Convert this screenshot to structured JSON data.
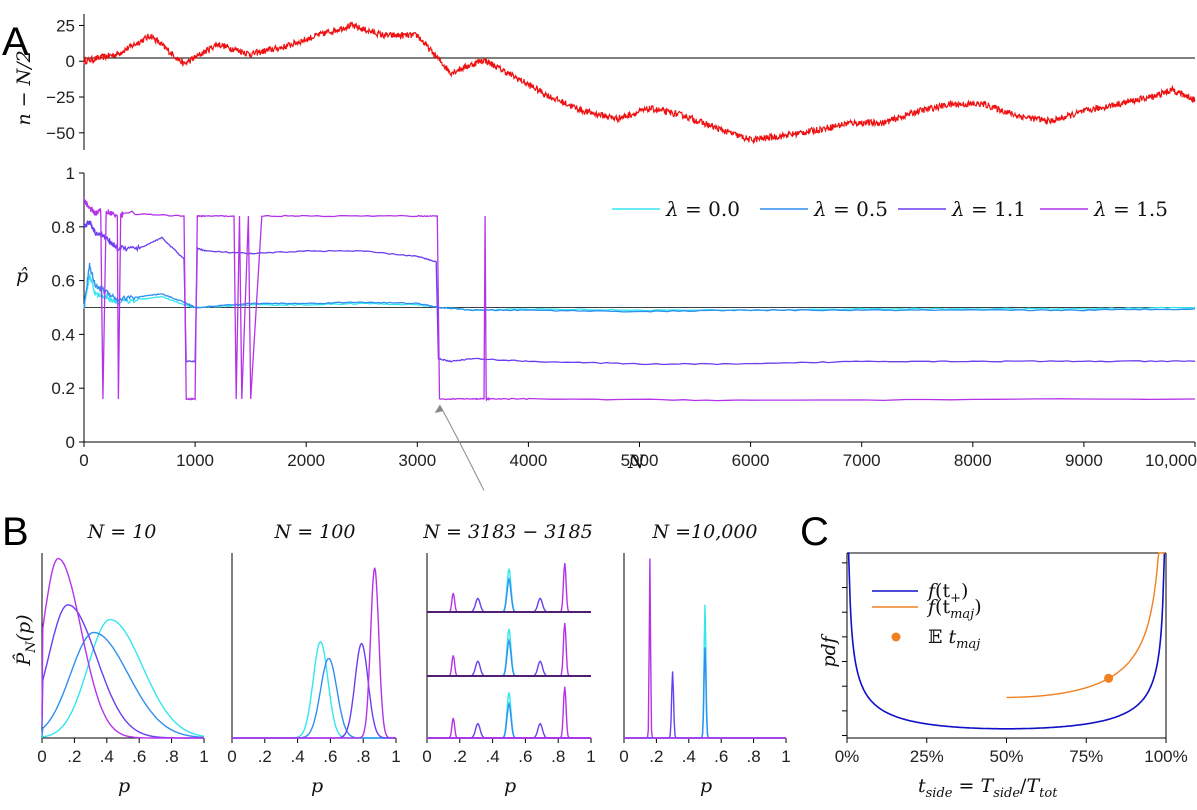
{
  "panel_labels": {
    "a": "A",
    "b": "B",
    "c": "C"
  },
  "colors": {
    "walk": "#ee1111",
    "lambda": [
      "#33e6f0",
      "#2f8ff0",
      "#6a3ff0",
      "#b433e8"
    ],
    "f_plus": "#1010c8",
    "f_maj": "#f08020",
    "zero_line": "#000000",
    "annotation": "#888888"
  },
  "chart_data": [
    {
      "id": "A-top",
      "type": "line",
      "title": "",
      "ylabel": "n − N/2",
      "xlabel": "",
      "xlim": [
        0,
        10000
      ],
      "ylim": [
        -62,
        33
      ],
      "yticks": [
        "25",
        "0",
        "−25",
        "−50"
      ],
      "ytick_values": [
        25,
        0,
        -25,
        -50
      ],
      "series": [
        {
          "name": "random walk",
          "x": [
            0,
            300,
            600,
            900,
            1200,
            1500,
            1800,
            2100,
            2400,
            2700,
            3000,
            3300,
            3600,
            3900,
            4200,
            4500,
            4800,
            5100,
            5400,
            5700,
            6000,
            6300,
            6600,
            6900,
            7200,
            7500,
            7800,
            8100,
            8400,
            8700,
            9000,
            9300,
            9600,
            9800,
            10000
          ],
          "y": [
            0,
            5,
            18,
            -2,
            12,
            5,
            10,
            18,
            25,
            18,
            18,
            -8,
            1,
            -12,
            -25,
            -35,
            -40,
            -33,
            -38,
            -47,
            -55,
            -52,
            -48,
            -43,
            -43,
            -35,
            -30,
            -30,
            -38,
            -42,
            -35,
            -30,
            -25,
            -20,
            -27
          ]
        }
      ]
    },
    {
      "id": "A-bottom",
      "type": "line",
      "title": "",
      "ylabel": "p̂",
      "xlabel": "N",
      "xlim": [
        0,
        10000
      ],
      "ylim": [
        0,
        1
      ],
      "xticks": [
        "0",
        "1000",
        "2000",
        "3000",
        "4000",
        "5000",
        "6000",
        "7000",
        "8000",
        "9000",
        "10,000"
      ],
      "xtick_values": [
        0,
        1000,
        2000,
        3000,
        4000,
        5000,
        6000,
        7000,
        8000,
        9000,
        10000
      ],
      "yticks": [
        "0",
        "0.2",
        "0.4",
        "0.6",
        "0.8",
        "1"
      ],
      "ytick_values": [
        0,
        0.2,
        0.4,
        0.6,
        0.8,
        1
      ],
      "legend_position": "top-right",
      "annotation": {
        "text": "",
        "from_x": 3600,
        "from_y": -0.18,
        "to_x": 3183,
        "to_y": 0.16
      },
      "series": [
        {
          "name": "λ = 0.0",
          "x": [
            0,
            50,
            100,
            200,
            300,
            500,
            700,
            900,
            1000,
            1500,
            2000,
            2500,
            3000,
            3200,
            3500,
            4000,
            5000,
            6000,
            7000,
            8000,
            9000,
            10000
          ],
          "y": [
            0.5,
            0.62,
            0.55,
            0.54,
            0.52,
            0.53,
            0.54,
            0.51,
            0.5,
            0.51,
            0.51,
            0.515,
            0.51,
            0.5,
            0.49,
            0.495,
            0.49,
            0.49,
            0.495,
            0.495,
            0.495,
            0.5
          ]
        },
        {
          "name": "λ = 0.5",
          "x": [
            0,
            50,
            100,
            200,
            300,
            500,
            700,
            900,
            1000,
            1500,
            2000,
            2500,
            3000,
            3200,
            3500,
            4000,
            5000,
            6000,
            7000,
            8000,
            9000,
            10000
          ],
          "y": [
            0.5,
            0.66,
            0.58,
            0.56,
            0.53,
            0.54,
            0.55,
            0.52,
            0.5,
            0.515,
            0.515,
            0.52,
            0.515,
            0.5,
            0.49,
            0.49,
            0.485,
            0.49,
            0.49,
            0.49,
            0.49,
            0.495
          ]
        },
        {
          "name": "λ = 1.1",
          "x": [
            0,
            50,
            100,
            200,
            300,
            500,
            700,
            900,
            920,
            1000,
            1020,
            1100,
            1500,
            2000,
            2500,
            3000,
            3170,
            3190,
            3300,
            3500,
            4000,
            5000,
            6000,
            7000,
            8000,
            9000,
            10000
          ],
          "y": [
            0.8,
            0.82,
            0.78,
            0.76,
            0.72,
            0.72,
            0.76,
            0.68,
            0.3,
            0.3,
            0.72,
            0.71,
            0.7,
            0.71,
            0.71,
            0.69,
            0.67,
            0.31,
            0.3,
            0.31,
            0.3,
            0.29,
            0.29,
            0.3,
            0.3,
            0.3,
            0.3
          ]
        },
        {
          "name": "λ = 1.5",
          "x": [
            0,
            50,
            100,
            150,
            170,
            200,
            300,
            310,
            330,
            350,
            900,
            920,
            1000,
            1020,
            1100,
            1350,
            1370,
            1400,
            1420,
            1480,
            1500,
            1600,
            2000,
            3000,
            3180,
            3200,
            3500,
            3600,
            3610,
            3620,
            3650,
            4000,
            6000,
            10000
          ],
          "y": [
            0.9,
            0.87,
            0.85,
            0.86,
            0.16,
            0.86,
            0.84,
            0.16,
            0.84,
            0.85,
            0.84,
            0.16,
            0.16,
            0.84,
            0.84,
            0.84,
            0.16,
            0.84,
            0.16,
            0.84,
            0.16,
            0.84,
            0.84,
            0.84,
            0.84,
            0.16,
            0.16,
            0.16,
            0.84,
            0.16,
            0.16,
            0.16,
            0.155,
            0.16
          ]
        }
      ]
    },
    {
      "id": "B1",
      "type": "line",
      "title": "N = 10",
      "ylabel": "P̂_N(p)",
      "xlabel": "p",
      "xlim": [
        0,
        1
      ],
      "xticks": [
        "0",
        ".2",
        ".4",
        ".6",
        ".8",
        "1"
      ],
      "xtick_values": [
        0,
        0.2,
        0.4,
        0.6,
        0.8,
        1
      ],
      "series": [
        {
          "name": "λ = 0.0",
          "mode": 0.42,
          "width": 0.17,
          "height": 0.64
        },
        {
          "name": "λ = 0.5",
          "mode": 0.32,
          "width": 0.18,
          "height": 0.57
        },
        {
          "name": "λ = 1.1",
          "mode": 0.16,
          "width": 0.15,
          "height": 0.72
        },
        {
          "name": "λ = 1.5",
          "mode": 0.1,
          "width": 0.12,
          "height": 0.97
        }
      ]
    },
    {
      "id": "B2",
      "type": "line",
      "title": "N = 100",
      "xlabel": "p",
      "xlim": [
        0,
        1
      ],
      "xticks": [
        "0",
        ".2",
        ".4",
        ".6",
        ".8",
        "1"
      ],
      "xtick_values": [
        0,
        0.2,
        0.4,
        0.6,
        0.8,
        1
      ],
      "series": [
        {
          "name": "λ = 0.0",
          "mode": 0.54,
          "width": 0.045,
          "height": 0.52
        },
        {
          "name": "λ = 0.5",
          "mode": 0.59,
          "width": 0.05,
          "height": 0.43
        },
        {
          "name": "λ = 1.1",
          "mode": 0.79,
          "width": 0.04,
          "height": 0.51
        },
        {
          "name": "λ = 1.5",
          "mode": 0.87,
          "width": 0.025,
          "height": 0.92
        }
      ]
    },
    {
      "id": "B3",
      "type": "line",
      "title": "N = 3183 − 3185",
      "xlabel": "p",
      "xlim": [
        0,
        1
      ],
      "xticks": [
        "0",
        ".2",
        ".4",
        ".6",
        ".8",
        "1"
      ],
      "xtick_values": [
        0,
        0.2,
        0.4,
        0.6,
        0.8,
        1
      ],
      "series": [
        {
          "name": "λ = 0.0",
          "mode": 0.5,
          "width": 0.012,
          "height": 0.8
        },
        {
          "name": "λ = 0.5",
          "mode": 0.5,
          "width": 0.012,
          "height": 0.6
        },
        {
          "name": "λ = 1.1",
          "mode": 0.31,
          "width": 0.014,
          "height": 0.25
        },
        {
          "name": "λ = 1.1",
          "mode": 0.69,
          "width": 0.014,
          "height": 0.25
        },
        {
          "name": "λ = 1.5",
          "mode": 0.16,
          "width": 0.008,
          "height": 0.35
        },
        {
          "name": "λ = 1.5",
          "mode": 0.84,
          "width": 0.008,
          "height": 0.9
        }
      ]
    },
    {
      "id": "B4",
      "type": "line",
      "title": "N =10,000",
      "xlabel": "p",
      "xlim": [
        0,
        1
      ],
      "xticks": [
        "0",
        ".2",
        ".4",
        ".6",
        ".8",
        "1"
      ],
      "xtick_values": [
        0,
        0.2,
        0.4,
        0.6,
        0.8,
        1
      ],
      "series": [
        {
          "name": "λ = 0.0",
          "mode": 0.5,
          "width": 0.006,
          "height": 0.72
        },
        {
          "name": "λ = 0.5",
          "mode": 0.5,
          "width": 0.006,
          "height": 0.49
        },
        {
          "name": "λ = 1.1",
          "mode": 0.3,
          "width": 0.006,
          "height": 0.36
        },
        {
          "name": "λ = 1.5",
          "mode": 0.16,
          "width": 0.004,
          "height": 0.97
        }
      ]
    },
    {
      "id": "C",
      "type": "line",
      "title": "",
      "ylabel": "pdf",
      "xlabel": "t_side = T_side/T_tot",
      "xlim": [
        0,
        1
      ],
      "xticks": [
        "0%",
        "25%",
        "50%",
        "75%",
        "100%"
      ],
      "xtick_values": [
        0,
        0.25,
        0.5,
        0.75,
        1
      ],
      "legend_position": "top-left",
      "series": [
        {
          "name": "f(t₊)",
          "formula": "1/(π·sqrt(t(1−t)))",
          "x_range": [
            0,
            1
          ]
        },
        {
          "name": "f(t_maj)",
          "formula": "2/(π·sqrt(t(1−t)))",
          "x_range": [
            0.5,
            1
          ]
        }
      ],
      "point": {
        "name": "𝔼 t_maj",
        "x": 0.82,
        "y": 1.66
      }
    }
  ],
  "labels": {
    "A_top_ylabel": "n − N/2",
    "A_bottom_ylabel": "p̂",
    "A_xlabel": "N",
    "B_ylabel": "P̂",
    "B_ylabel_sub": "N",
    "B_ylabel_tail": "(p)",
    "B_xlabel": "p",
    "C_ylabel": "pdf",
    "C_xlabel_t": "t",
    "C_xlabel_side": "side",
    "C_xlabel_eq": " = ",
    "C_xlabel_T": "T",
    "C_xlabel_slash": "/",
    "C_xlabel_tot": "tot",
    "C_leg1_f": "f",
    "C_leg1_arg": "(t",
    "C_leg1_sub": "+",
    "C_leg1_close": ")",
    "C_leg2_arg": "(t",
    "C_leg2_sub": "maj",
    "C_leg2_close": ")",
    "C_leg3_E": "𝔼",
    "C_leg3_t": " t",
    "C_leg3_sub": "maj"
  },
  "legend_A": [
    {
      "lambda": "λ",
      "eq": " = 0.0"
    },
    {
      "lambda": "λ",
      "eq": " = 0.5"
    },
    {
      "lambda": "λ",
      "eq": " = 1.1"
    },
    {
      "lambda": "λ",
      "eq": " = 1.5"
    }
  ]
}
